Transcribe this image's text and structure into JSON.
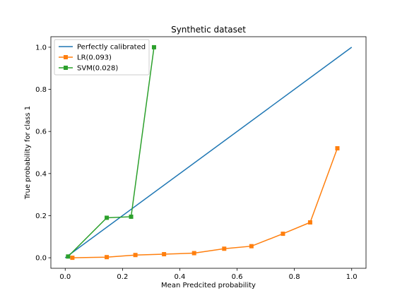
{
  "chart_data": {
    "type": "line",
    "title": "Synthetic dataset",
    "xlabel": "Mean Predcited probability",
    "ylabel": "True probability for class 1",
    "xlim": [
      -0.05,
      1.05
    ],
    "ylim": [
      -0.05,
      1.05
    ],
    "xticks": [
      0.0,
      0.2,
      0.4,
      0.6,
      0.8,
      1.0
    ],
    "yticks": [
      0.0,
      0.2,
      0.4,
      0.6,
      0.8,
      1.0
    ],
    "tick_labels": [
      "0.0",
      "0.2",
      "0.4",
      "0.6",
      "0.8",
      "1.0"
    ],
    "grid": false,
    "legend_position": "top-left",
    "series": [
      {
        "name": "Perfectly calibrated",
        "color": "#1f77b4",
        "marker": "none",
        "x": [
          0.0,
          1.0
        ],
        "y": [
          0.0,
          1.0
        ]
      },
      {
        "name": "LR(0.093)",
        "color": "#ff7f0e",
        "marker": "square",
        "x": [
          0.025,
          0.145,
          0.245,
          0.345,
          0.45,
          0.555,
          0.65,
          0.76,
          0.855,
          0.95
        ],
        "y": [
          0.0,
          0.003,
          0.013,
          0.017,
          0.022,
          0.043,
          0.055,
          0.114,
          0.168,
          0.52
        ]
      },
      {
        "name": "SVM(0.028)",
        "color": "#2ca02c",
        "marker": "square",
        "x": [
          0.01,
          0.145,
          0.23,
          0.31
        ],
        "y": [
          0.006,
          0.19,
          0.195,
          1.0
        ]
      }
    ]
  }
}
